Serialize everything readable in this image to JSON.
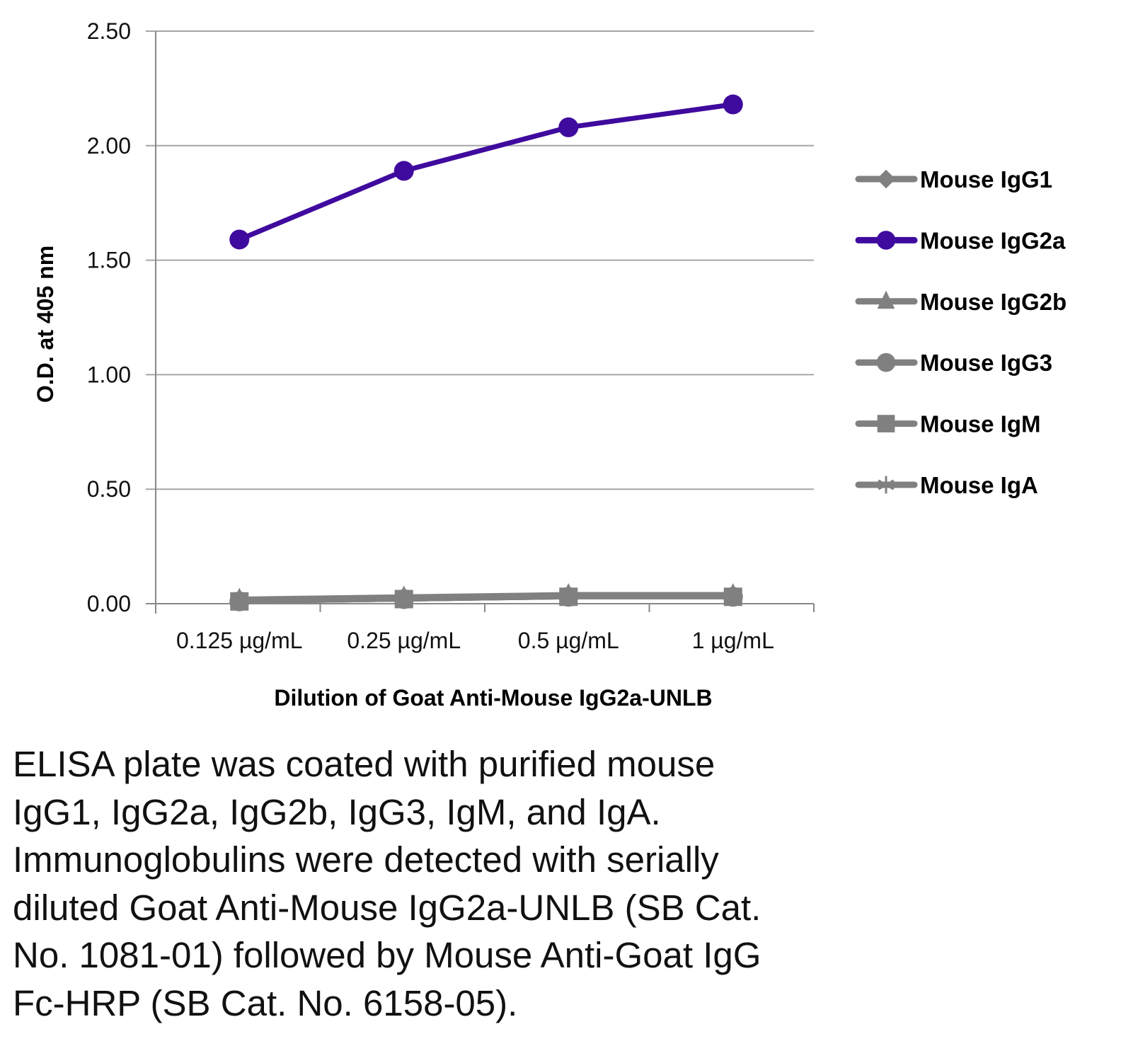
{
  "chart_data": {
    "type": "line",
    "title": "",
    "xlabel": "Dilution of Goat Anti-Mouse IgG2a-UNLB",
    "ylabel": "O.D. at 405 nm",
    "ylim": [
      0,
      2.5
    ],
    "yticks": [
      "0.00",
      "0.50",
      "1.00",
      "1.50",
      "2.00",
      "2.50"
    ],
    "ytick_values": [
      0,
      0.5,
      1,
      1.5,
      2,
      2.5
    ],
    "categories": [
      "0.125 µg/mL",
      "0.25 µg/mL",
      "0.5 µg/mL",
      "1 µg/mL"
    ],
    "grid": true,
    "legend_position": "right",
    "series": [
      {
        "name": "Mouse IgG1",
        "marker": "diamond",
        "color": "#808080",
        "values": [
          0.01,
          0.02,
          0.03,
          0.03
        ]
      },
      {
        "name": "Mouse IgG2a",
        "marker": "circle",
        "color": "#3f0a9e",
        "values": [
          1.59,
          1.89,
          2.08,
          2.18
        ]
      },
      {
        "name": "Mouse IgG2b",
        "marker": "triangle",
        "color": "#808080",
        "values": [
          0.02,
          0.03,
          0.04,
          0.04
        ]
      },
      {
        "name": "Mouse IgG3",
        "marker": "circle",
        "color": "#808080",
        "values": [
          0.01,
          0.02,
          0.03,
          0.03
        ]
      },
      {
        "name": "Mouse IgM",
        "marker": "square",
        "color": "#808080",
        "values": [
          0.01,
          0.02,
          0.03,
          0.03
        ]
      },
      {
        "name": "Mouse IgA",
        "marker": "star",
        "color": "#808080",
        "values": [
          0.01,
          0.02,
          0.03,
          0.03
        ]
      }
    ]
  },
  "caption_lines": [
    "ELISA plate was coated with purified mouse",
    "IgG1, IgG2a, IgG2b, IgG3, IgM, and IgA.",
    "Immunoglobulins were detected with serially",
    "diluted Goat Anti-Mouse IgG2a-UNLB (SB Cat.",
    "No. 1081-01) followed by Mouse Anti-Goat IgG",
    "Fc-HRP (SB Cat. No. 6158-05)."
  ]
}
